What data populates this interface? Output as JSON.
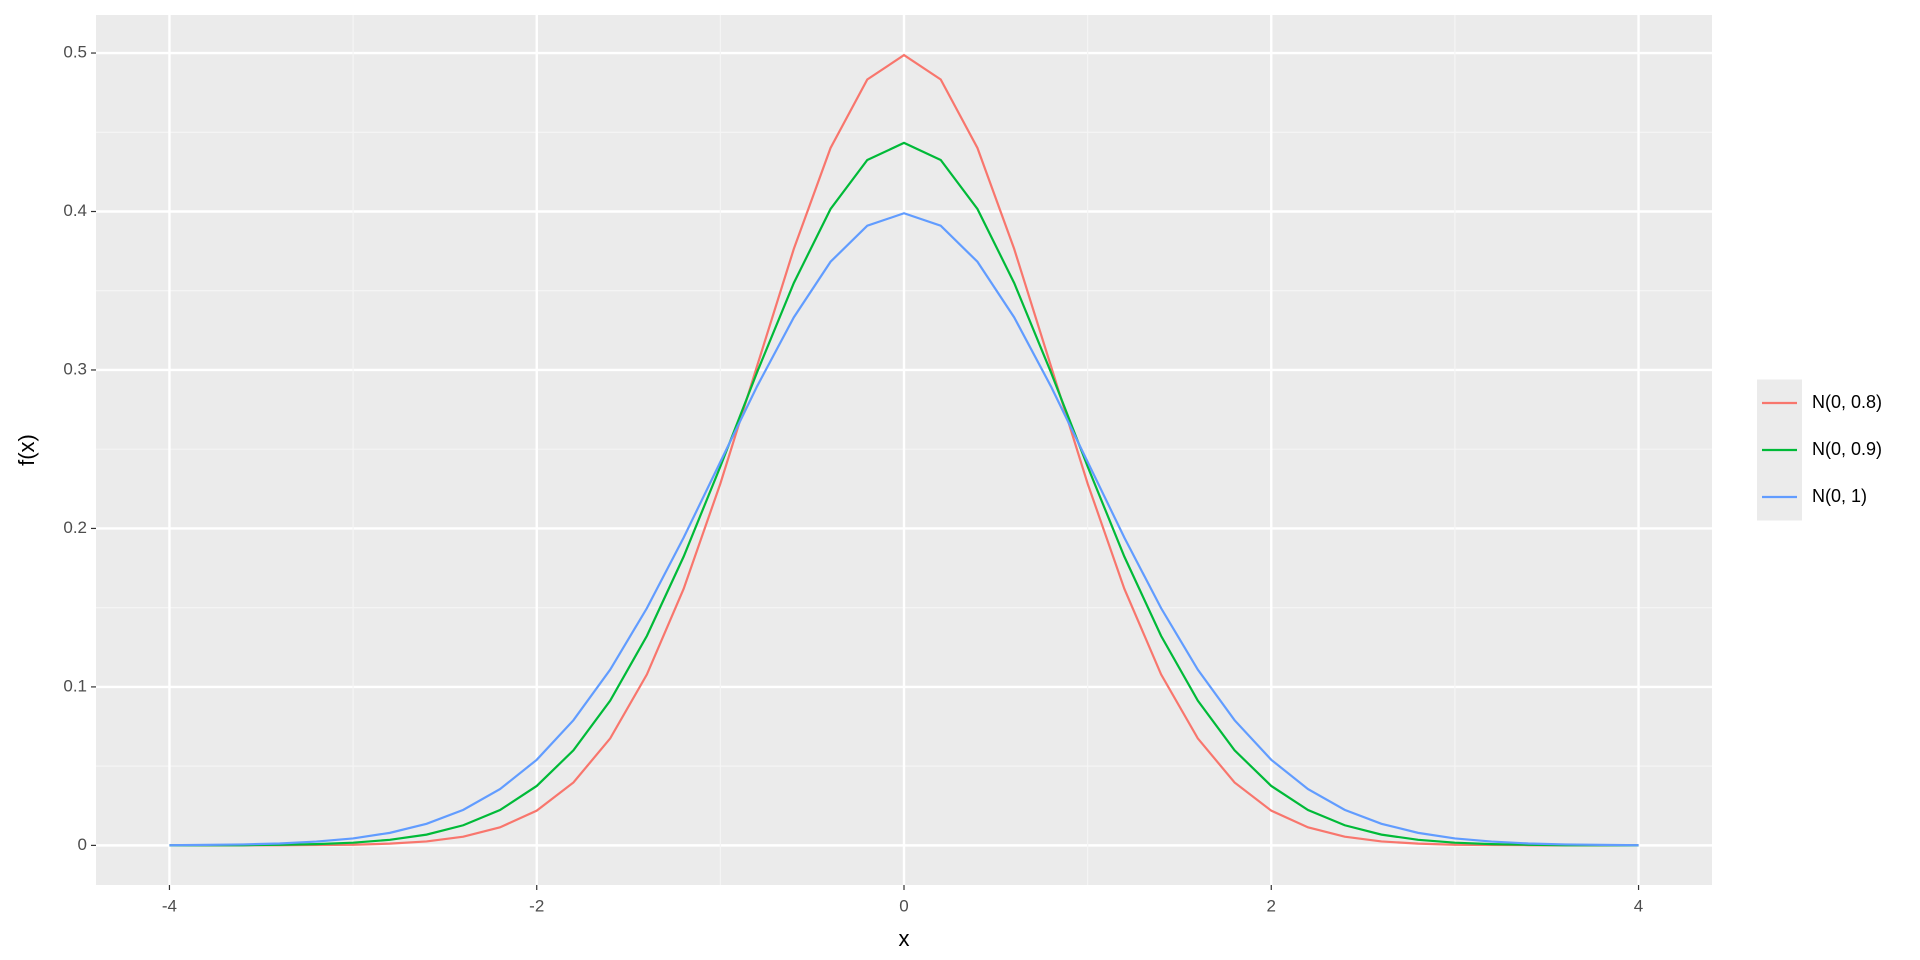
{
  "chart_data": {
    "type": "line",
    "x": [
      -4,
      -3.8,
      -3.6,
      -3.4,
      -3.2,
      -3,
      -2.8,
      -2.6,
      -2.4,
      -2.2,
      -2,
      -1.8,
      -1.6,
      -1.4,
      -1.2,
      -1,
      -0.8,
      -0.6,
      -0.4,
      -0.2,
      0,
      0.2,
      0.4,
      0.6,
      0.8,
      1,
      1.2,
      1.4,
      1.6,
      1.8,
      2,
      2.2,
      2.4,
      2.6,
      2.8,
      3,
      3.2,
      3.4,
      3.6,
      3.8,
      4
    ],
    "series": [
      {
        "name": "N(0, 0.8)",
        "color": "#f8766d",
        "values": [
          0,
          0,
          0,
          0.0001,
          0.0002,
          0.0004,
          0.0011,
          0.0025,
          0.0055,
          0.0114,
          0.0219,
          0.0397,
          0.0675,
          0.1079,
          0.1619,
          0.2283,
          0.3025,
          0.3764,
          0.4401,
          0.4833,
          0.4987,
          0.4833,
          0.4401,
          0.3764,
          0.3025,
          0.2283,
          0.1619,
          0.1079,
          0.0675,
          0.0397,
          0.0219,
          0.0114,
          0.0055,
          0.0025,
          0.0011,
          0.0004,
          0.0002,
          0.0001,
          0,
          0,
          0
        ]
      },
      {
        "name": "N(0, 0.9)",
        "color": "#00ba38",
        "values": [
          0,
          0.0001,
          0.0001,
          0.0004,
          0.0008,
          0.0017,
          0.0035,
          0.0068,
          0.0127,
          0.0223,
          0.0375,
          0.06,
          0.0913,
          0.1322,
          0.1822,
          0.2391,
          0.2986,
          0.3549,
          0.4016,
          0.4325,
          0.4433,
          0.4325,
          0.4016,
          0.3549,
          0.2986,
          0.2391,
          0.1822,
          0.1322,
          0.0913,
          0.06,
          0.0375,
          0.0223,
          0.0127,
          0.0068,
          0.0035,
          0.0017,
          0.0008,
          0.0004,
          0.0001,
          0.0001,
          0
        ]
      },
      {
        "name": "N(0, 1)",
        "color": "#619cff",
        "values": [
          0.0001,
          0.0003,
          0.0006,
          0.0012,
          0.0024,
          0.0044,
          0.0079,
          0.0136,
          0.0224,
          0.0355,
          0.054,
          0.079,
          0.1109,
          0.1497,
          0.1942,
          0.242,
          0.2897,
          0.3332,
          0.3683,
          0.391,
          0.3989,
          0.391,
          0.3683,
          0.3332,
          0.2897,
          0.242,
          0.1942,
          0.1497,
          0.1109,
          0.079,
          0.054,
          0.0355,
          0.0224,
          0.0136,
          0.0079,
          0.0044,
          0.0024,
          0.0012,
          0.0006,
          0.0003,
          0.0001
        ]
      }
    ],
    "xlabel": "x",
    "ylabel": "f(x)",
    "xlim": [
      -4.4,
      4.4
    ],
    "xticks": [
      -4,
      -2,
      0,
      2,
      4
    ],
    "ylim": [
      -0.025,
      0.524
    ],
    "yticks": [
      0.0,
      0.1,
      0.2,
      0.3,
      0.4,
      0.5
    ],
    "grid": true,
    "legend_position": "right"
  }
}
